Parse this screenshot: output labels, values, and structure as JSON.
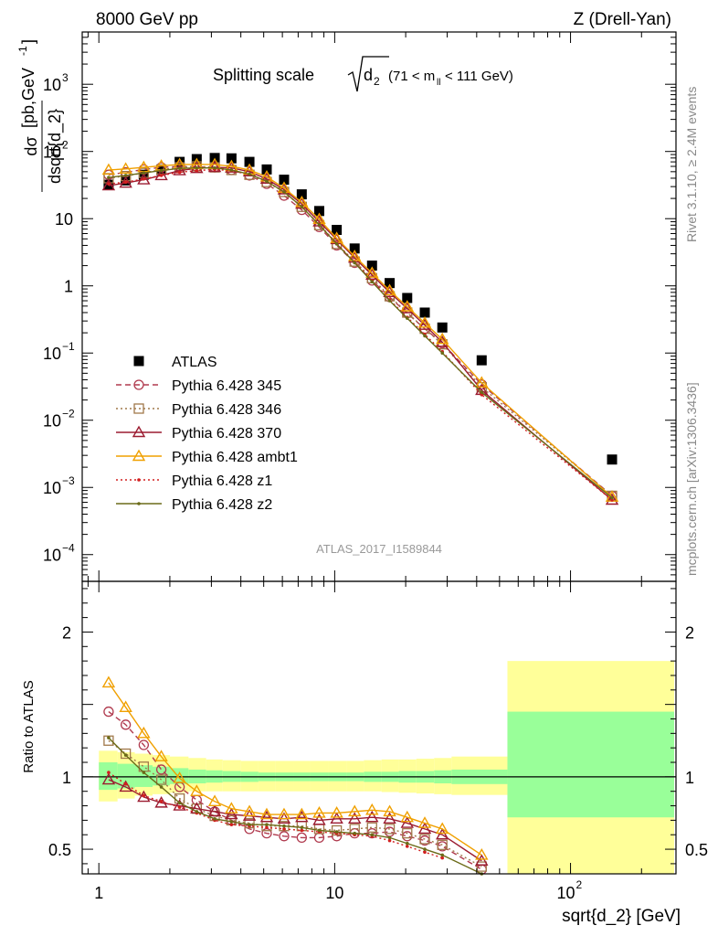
{
  "header": {
    "left": "8000 GeV pp",
    "right": "Z (Drell-Yan)"
  },
  "side": {
    "rivet": "Rivet 3.1.10, ≥ 2.4M events",
    "mcplots": "mcplots.cern.ch [arXiv:1306.3436]"
  },
  "chart_data": [
    {
      "type": "scatter",
      "panel": "main",
      "title": "Splitting scale √d2 (71 < m_ll < 111 GeV)",
      "title_parts": {
        "text": "Splitting scale",
        "sqrt_sub": "d",
        "sqrt_index": "2",
        "range": "(71 < m",
        "range_sub": "ll",
        "range_end": " < 111 GeV)"
      },
      "ylabel": "dσ/dsqrt{d_2} [pb,GeV⁻¹]",
      "ylabel_parts": {
        "num": "dσ",
        "den": "dsqrt{d_2}",
        "unit": "[pb,GeV",
        "unit_sup": "-1",
        "unit_end": "]"
      },
      "xscale": "log",
      "yscale": "log",
      "xlim": [
        0.85,
        280
      ],
      "ylim": [
        4e-05,
        6000
      ],
      "y_ticks": [
        {
          "value": 0.0001,
          "base": "10",
          "exp": "−4"
        },
        {
          "value": 0.001,
          "base": "10",
          "exp": "−3"
        },
        {
          "value": 0.01,
          "base": "10",
          "exp": "−2"
        },
        {
          "value": 0.1,
          "base": "10",
          "exp": "−1"
        },
        {
          "value": 1,
          "base": "1",
          "exp": ""
        },
        {
          "value": 10,
          "base": "10",
          "exp": ""
        },
        {
          "value": 100,
          "base": "10",
          "exp": "2"
        },
        {
          "value": 1000,
          "base": "10",
          "exp": "3"
        }
      ],
      "watermark": "ATLAS_2017_I1589844",
      "legend_position": "middle-left",
      "x": [
        1.1,
        1.3,
        1.55,
        1.84,
        2.2,
        2.6,
        3.1,
        3.65,
        4.35,
        5.15,
        6.1,
        7.25,
        8.6,
        10.2,
        12.15,
        14.4,
        17.1,
        20.3,
        24.1,
        28.6,
        42,
        150
      ],
      "series": [
        {
          "name": "ATLAS",
          "color": "#000000",
          "marker": "square-filled",
          "line": "none",
          "values": [
            32,
            37,
            45,
            53,
            70,
            77,
            80,
            79,
            70,
            54,
            38,
            23,
            13,
            6.8,
            3.6,
            2.0,
            1.1,
            0.66,
            0.4,
            0.24,
            0.078,
            0.0026
          ]
        },
        {
          "name": "Pythia 6.428 345",
          "color": "#b03a4e",
          "marker": "circle-open",
          "line": "dashed",
          "values": [
            45,
            49,
            54,
            58,
            60,
            59,
            58,
            53,
            44,
            33,
            22,
            13.5,
            7.5,
            4.0,
            2.2,
            1.2,
            0.68,
            0.39,
            0.23,
            0.14,
            0.034,
            0.00075
          ]
        },
        {
          "name": "Pythia 6.428 346",
          "color": "#a0784a",
          "marker": "square-open",
          "line": "dotted",
          "values": [
            40,
            43,
            48,
            54,
            58,
            60,
            58,
            53,
            45,
            35,
            25,
            15,
            8.0,
            4.2,
            2.3,
            1.3,
            0.7,
            0.4,
            0.23,
            0.135,
            0.031,
            0.00075
          ]
        },
        {
          "name": "Pythia 6.428 370",
          "color": "#9b1b30",
          "marker": "triangle-open",
          "line": "solid",
          "values": [
            31,
            34,
            38,
            44,
            52,
            56,
            58,
            57,
            50,
            39,
            27,
            16.5,
            9.0,
            4.9,
            2.6,
            1.45,
            0.8,
            0.46,
            0.26,
            0.145,
            0.028,
            0.00065
          ]
        },
        {
          "name": "Pythia 6.428 ambt1",
          "color": "#f0a000",
          "marker": "triangle-open",
          "line": "solid",
          "values": [
            53,
            55,
            58,
            61,
            64,
            64,
            64,
            60,
            53,
            42,
            28.5,
            17.5,
            9.8,
            5.1,
            2.75,
            1.55,
            0.85,
            0.49,
            0.28,
            0.16,
            0.036,
            0.00072
          ]
        },
        {
          "name": "Pythia 6.428 z1",
          "color": "#d21f1f",
          "marker": "dot",
          "line": "dotted",
          "values": [
            33,
            35,
            39,
            44,
            49,
            52,
            54,
            52,
            46,
            36,
            25,
            15,
            8.2,
            4.3,
            2.25,
            1.2,
            0.62,
            0.34,
            0.19,
            0.105,
            0.024,
            0.00065
          ]
        },
        {
          "name": "Pythia 6.428 z2",
          "color": "#6b6b18",
          "marker": "dot",
          "line": "solid",
          "values": [
            41,
            44,
            48,
            52,
            56,
            57,
            57,
            53,
            46,
            36,
            25,
            15,
            8.1,
            4.2,
            2.2,
            1.15,
            0.6,
            0.33,
            0.18,
            0.1,
            0.026,
            0.0007
          ]
        }
      ]
    },
    {
      "type": "line",
      "panel": "ratio",
      "ylabel": "Ratio to ATLAS",
      "xlabel": "sqrt{d_2} [GeV]",
      "xscale": "log",
      "xlim": [
        0.85,
        280
      ],
      "ylim": [
        0.33,
        2.35
      ],
      "y_ticks": [
        0.5,
        1,
        2
      ],
      "y_tick_labels": [
        "0.5",
        "1",
        "2"
      ],
      "x_ticks": [
        {
          "value": 1,
          "base": "1",
          "exp": ""
        },
        {
          "value": 10,
          "base": "10",
          "exp": ""
        },
        {
          "value": 100,
          "base": "10",
          "exp": "2"
        }
      ],
      "reference_line": 1,
      "uncertainty_bands": {
        "edges": [
          1,
          1.2,
          1.42,
          1.69,
          2.0,
          2.4,
          2.85,
          3.35,
          4.0,
          4.75,
          5.6,
          6.7,
          7.9,
          9.4,
          11.2,
          13.3,
          15.8,
          18.7,
          22.2,
          26.4,
          31.3,
          54,
          275
        ],
        "stat_color": "#99ff99",
        "syst_color": "#ffff99",
        "inner_lo": [
          0.91,
          0.92,
          0.93,
          0.94,
          0.95,
          0.955,
          0.96,
          0.965,
          0.965,
          0.97,
          0.97,
          0.97,
          0.97,
          0.97,
          0.97,
          0.965,
          0.965,
          0.96,
          0.96,
          0.955,
          0.95,
          0.72
        ],
        "inner_hi": [
          1.1,
          1.09,
          1.08,
          1.07,
          1.06,
          1.05,
          1.045,
          1.04,
          1.035,
          1.03,
          1.03,
          1.03,
          1.03,
          1.03,
          1.03,
          1.035,
          1.035,
          1.04,
          1.04,
          1.045,
          1.05,
          1.45
        ],
        "outer_lo": [
          0.83,
          0.85,
          0.87,
          0.88,
          0.89,
          0.9,
          0.9,
          0.9,
          0.9,
          0.9,
          0.9,
          0.9,
          0.9,
          0.9,
          0.9,
          0.9,
          0.895,
          0.89,
          0.885,
          0.88,
          0.875,
          0.33
        ],
        "outer_hi": [
          1.18,
          1.17,
          1.16,
          1.15,
          1.14,
          1.13,
          1.12,
          1.115,
          1.11,
          1.11,
          1.11,
          1.11,
          1.11,
          1.11,
          1.11,
          1.115,
          1.12,
          1.12,
          1.125,
          1.13,
          1.14,
          1.8
        ]
      },
      "x": [
        1.1,
        1.3,
        1.55,
        1.84,
        2.2,
        2.6,
        3.1,
        3.65,
        4.35,
        5.15,
        6.1,
        7.25,
        8.6,
        10.2,
        12.15,
        14.4,
        17.1,
        20.3,
        24.1,
        28.6,
        42
      ],
      "series": [
        {
          "name": "Pythia 6.428 345",
          "color": "#b03a4e",
          "marker": "circle-open",
          "line": "dashed",
          "values": [
            1.45,
            1.36,
            1.22,
            1.05,
            0.93,
            0.84,
            0.76,
            0.7,
            0.64,
            0.61,
            0.59,
            0.58,
            0.58,
            0.59,
            0.61,
            0.61,
            0.62,
            0.59,
            0.56,
            0.52,
            0.36
          ]
        },
        {
          "name": "Pythia 6.428 346",
          "color": "#a0784a",
          "marker": "square-open",
          "line": "dotted",
          "values": [
            1.25,
            1.16,
            1.07,
            0.98,
            0.85,
            0.78,
            0.73,
            0.7,
            0.68,
            0.66,
            0.66,
            0.66,
            0.64,
            0.63,
            0.64,
            0.65,
            0.64,
            0.61,
            0.57,
            0.53,
            0.38
          ]
        },
        {
          "name": "Pythia 6.428 370",
          "color": "#9b1b30",
          "marker": "triangle-open",
          "line": "solid",
          "values": [
            0.98,
            0.93,
            0.86,
            0.82,
            0.8,
            0.78,
            0.76,
            0.74,
            0.73,
            0.72,
            0.71,
            0.72,
            0.7,
            0.71,
            0.71,
            0.72,
            0.71,
            0.68,
            0.64,
            0.6,
            0.42
          ]
        },
        {
          "name": "Pythia 6.428 ambt1",
          "color": "#f0a000",
          "marker": "triangle-open",
          "line": "solid",
          "values": [
            1.65,
            1.48,
            1.3,
            1.14,
            0.99,
            0.9,
            0.83,
            0.78,
            0.76,
            0.74,
            0.74,
            0.74,
            0.75,
            0.75,
            0.76,
            0.77,
            0.76,
            0.72,
            0.68,
            0.64,
            0.46
          ]
        },
        {
          "name": "Pythia 6.428 z1",
          "color": "#d21f1f",
          "marker": "dot",
          "line": "dotted",
          "values": [
            1.03,
            0.95,
            0.87,
            0.83,
            0.79,
            0.75,
            0.7,
            0.67,
            0.66,
            0.65,
            0.64,
            0.63,
            0.62,
            0.61,
            0.6,
            0.59,
            0.56,
            0.52,
            0.48,
            0.44,
            0.31
          ]
        },
        {
          "name": "Pythia 6.428 z2",
          "color": "#6b6b18",
          "marker": "dot",
          "line": "solid",
          "values": [
            1.27,
            1.15,
            1.03,
            0.93,
            0.82,
            0.76,
            0.71,
            0.69,
            0.67,
            0.67,
            0.66,
            0.65,
            0.63,
            0.62,
            0.61,
            0.6,
            0.58,
            0.54,
            0.5,
            0.46,
            0.33
          ]
        }
      ]
    }
  ]
}
